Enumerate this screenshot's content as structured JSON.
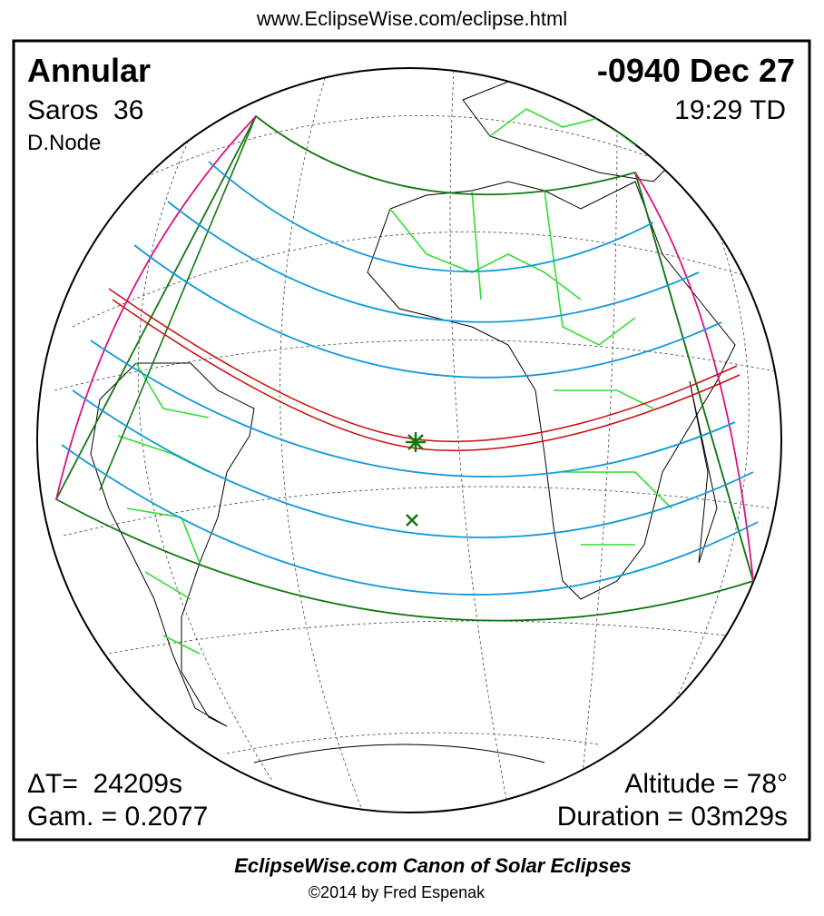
{
  "header": {
    "url": "www.EclipseWise.com/eclipse.html"
  },
  "panel": {
    "type": "Annular",
    "date": "-0940 Dec 27",
    "saros": "Saros  36",
    "time": "19:29 TD",
    "node": "D.Node",
    "delta_t": "ΔT=  24209s",
    "gamma": "Gam. = 0.2077",
    "altitude": "Altitude = 78°",
    "duration": "Duration = 03m29s"
  },
  "footer": {
    "title": "EclipseWise.com Canon of Solar Eclipses",
    "credit": "©2014 by Fred Espenak"
  }
}
